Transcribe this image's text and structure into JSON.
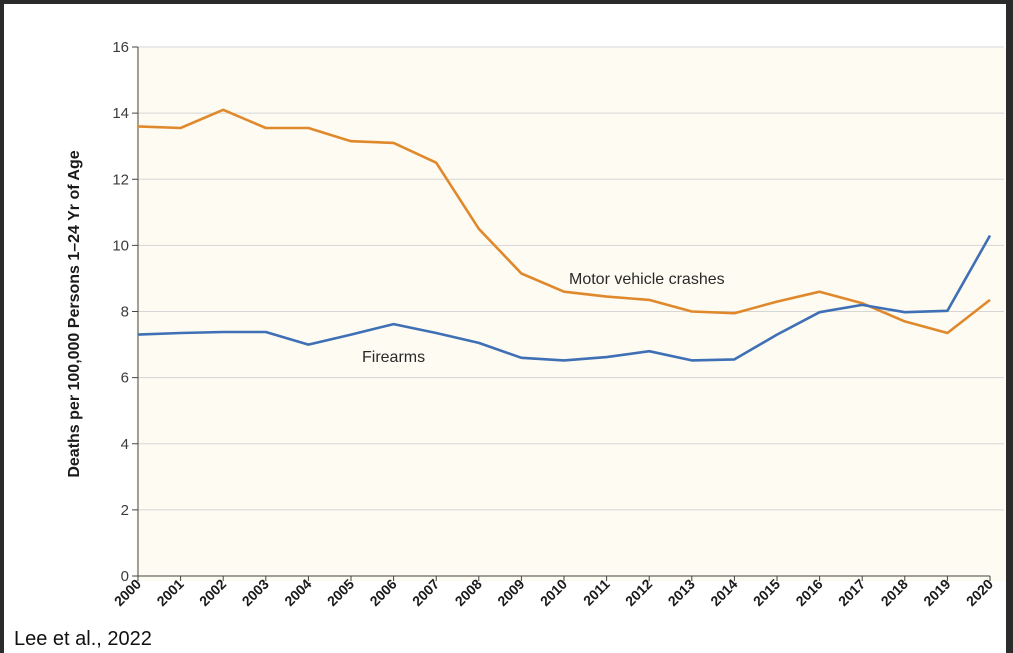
{
  "credit": "Lee et al., 2022",
  "chart_data": {
    "type": "line",
    "ylabel": "Deaths per 100,000 Persons 1–24 Yr of Age",
    "xlabel": "",
    "ylim": [
      0,
      16
    ],
    "yticks": [
      0,
      2,
      4,
      6,
      8,
      10,
      12,
      14,
      16
    ],
    "grid": true,
    "x": [
      "2000",
      "2001",
      "2002",
      "2003",
      "2004",
      "2005",
      "2006",
      "2007",
      "2008",
      "2009",
      "2010",
      "2011",
      "2012",
      "2013",
      "2014",
      "2015",
      "2016",
      "2017",
      "2018",
      "2019",
      "2020"
    ],
    "series": [
      {
        "name": "Motor vehicle crashes",
        "color": "#e0892c",
        "values": [
          13.6,
          13.55,
          14.1,
          13.55,
          13.55,
          13.15,
          13.1,
          12.5,
          10.5,
          9.15,
          8.6,
          8.45,
          8.35,
          8.0,
          7.95,
          8.3,
          8.6,
          8.25,
          7.7,
          7.35,
          8.35
        ]
      },
      {
        "name": "Firearms",
        "color": "#3f6fb5",
        "values": [
          7.3,
          7.35,
          7.38,
          7.38,
          7.0,
          7.3,
          7.62,
          7.35,
          7.05,
          6.6,
          6.52,
          6.62,
          6.8,
          6.52,
          6.55,
          7.3,
          7.98,
          8.2,
          7.98,
          8.02,
          10.3
        ]
      }
    ],
    "annotations": [
      "Motor vehicle crashes",
      "Firearms"
    ]
  }
}
